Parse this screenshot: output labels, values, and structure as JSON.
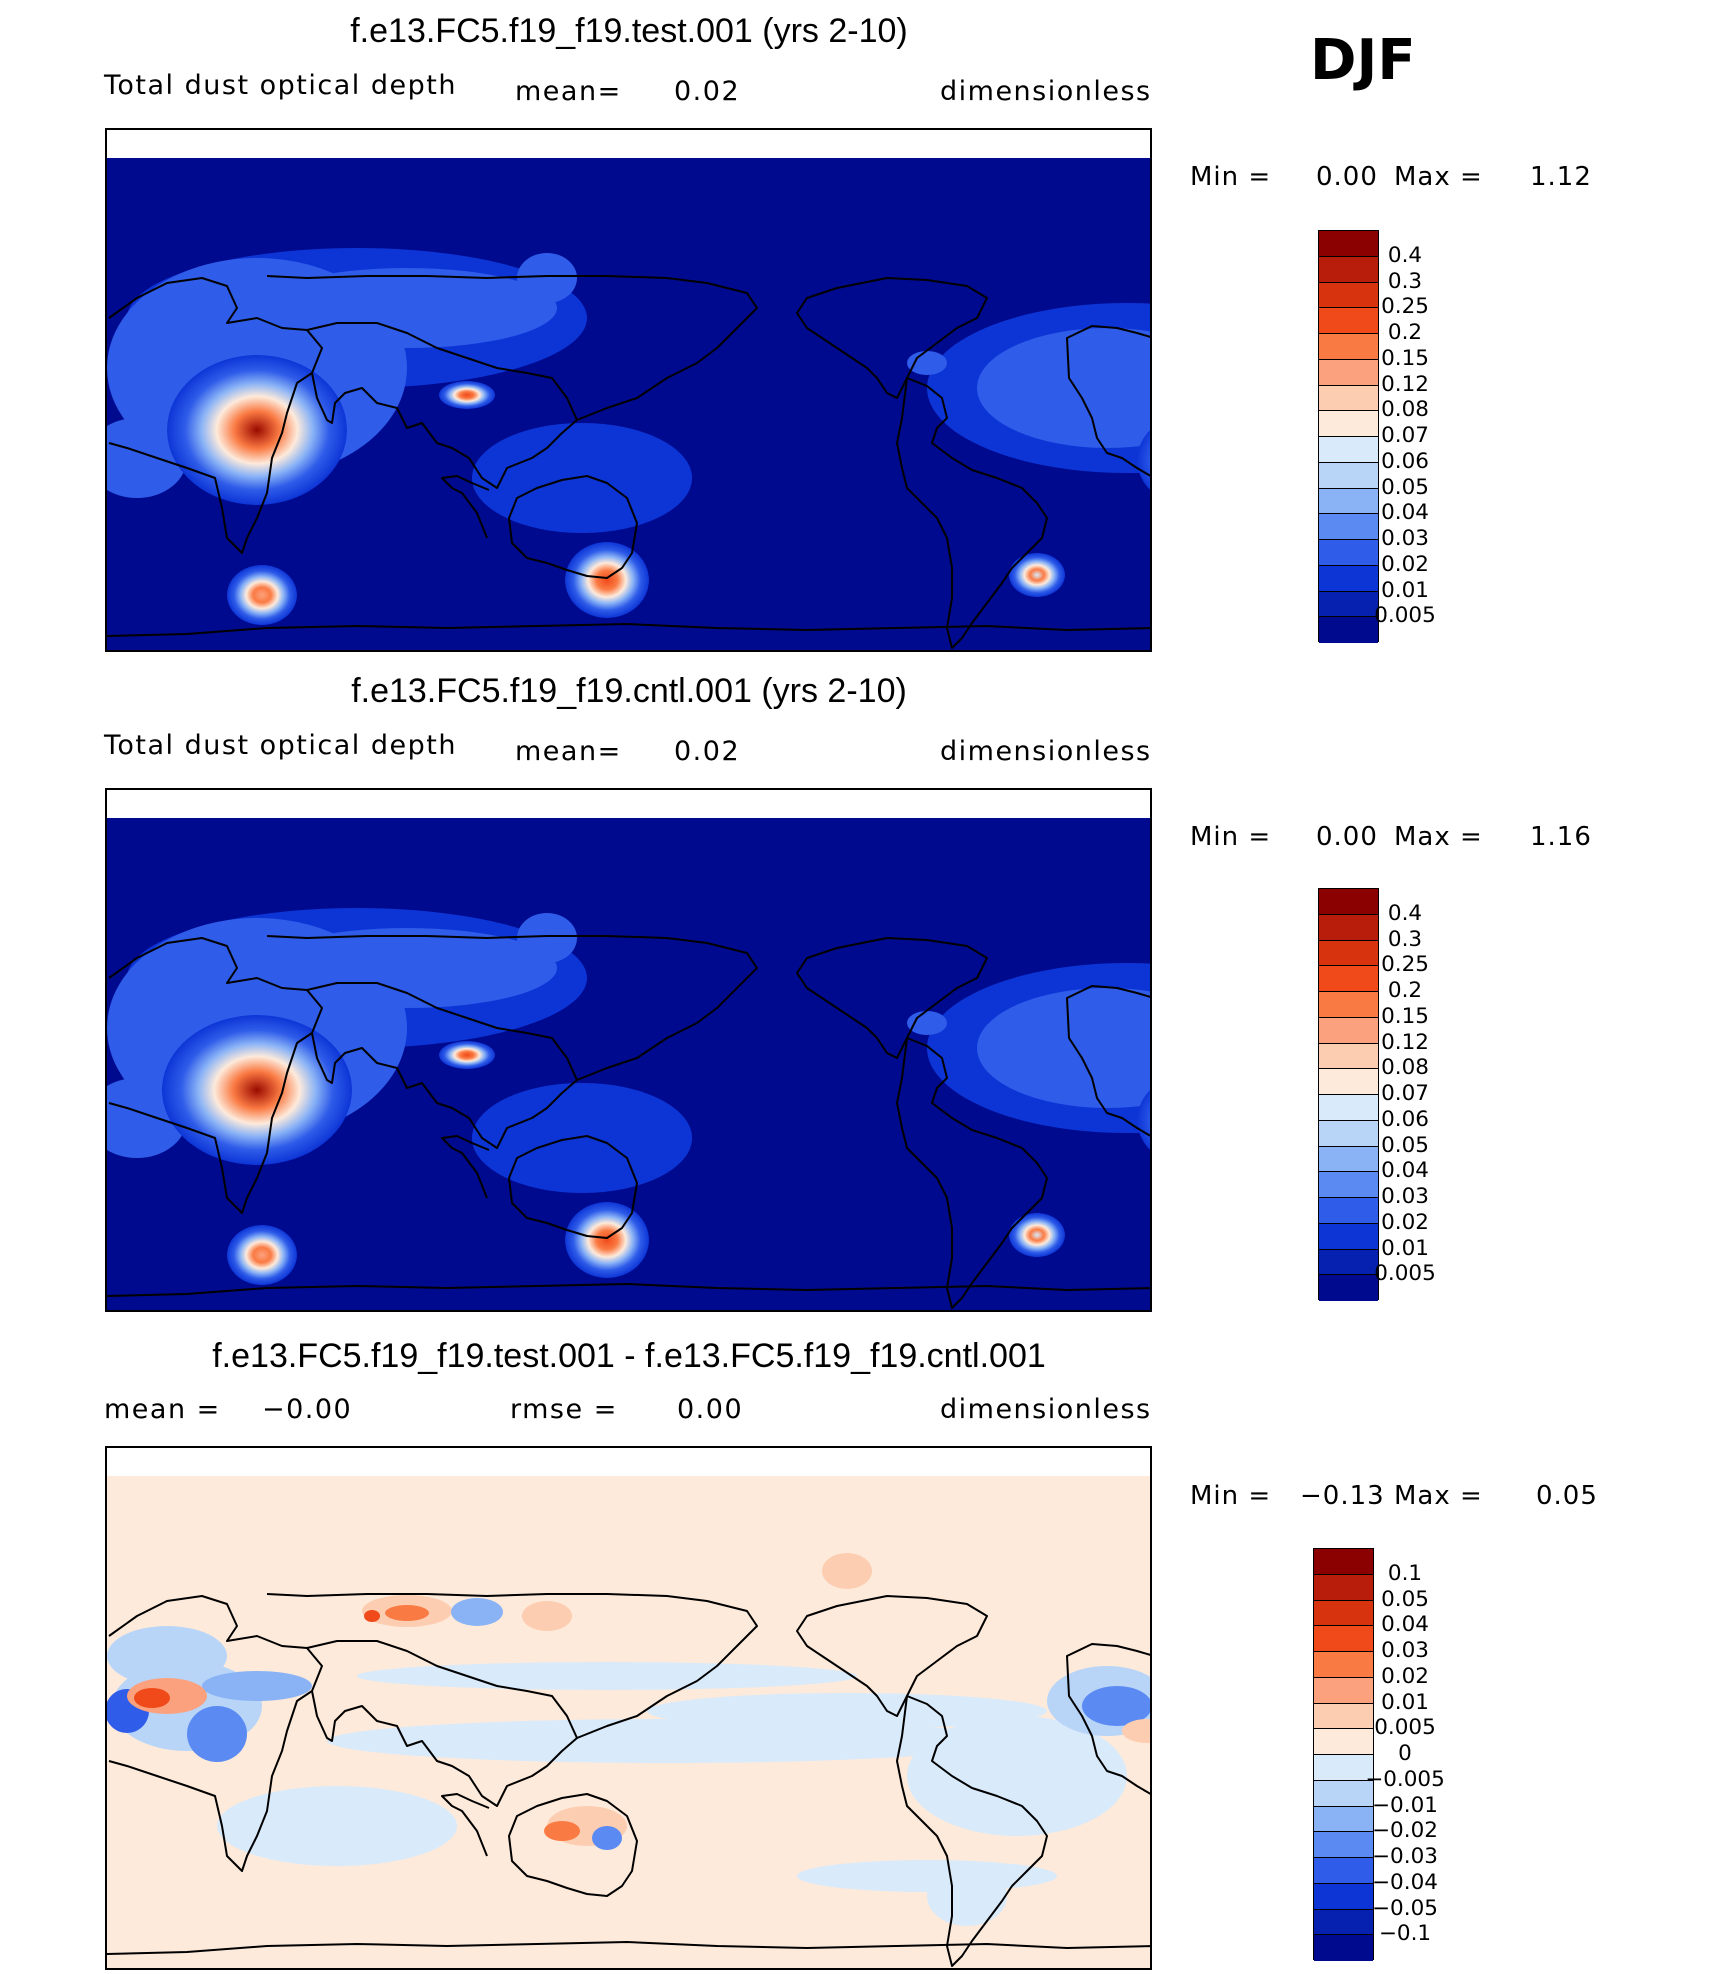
{
  "season": "DJF",
  "panels": [
    {
      "id": "test",
      "title": "f.e13.FC5.f19_f19.test.001 (yrs 2-10)",
      "variable": "Total dust optical depth",
      "stat1_label": "mean=",
      "stat1_value": "0.02",
      "units": "dimensionless",
      "min_label": "Min =",
      "min_value": "0.00",
      "max_label": "Max =",
      "max_value": "1.12",
      "background_color": "#000a8f",
      "colorbar": {
        "labels": [
          "0.4",
          "0.3",
          "0.25",
          "0.2",
          "0.15",
          "0.12",
          "0.08",
          "0.07",
          "0.06",
          "0.05",
          "0.04",
          "0.03",
          "0.02",
          "0.01",
          "0.005"
        ],
        "colors": [
          "#8b0000",
          "#b81c0a",
          "#d8330f",
          "#f04a1a",
          "#fa7a43",
          "#fca17e",
          "#fdcdb1",
          "#fdeadb",
          "#d9eafa",
          "#b8d5f8",
          "#8ab3f6",
          "#5a8af2",
          "#2f5ce9",
          "#0d35d6",
          "#0621b0",
          "#000a8f"
        ]
      },
      "hotspots": [
        {
          "cx": 150,
          "cy": 300,
          "rx": 90,
          "ry": 75,
          "peak": "#9a0a00"
        },
        {
          "cx": 500,
          "cy": 450,
          "rx": 42,
          "ry": 38,
          "peak": "#f04a1a"
        },
        {
          "cx": 1110,
          "cy": 330,
          "rx": 80,
          "ry": 55,
          "peak": "#d8330f"
        },
        {
          "cx": 360,
          "cy": 265,
          "rx": 28,
          "ry": 14,
          "peak": "#f04a1a"
        },
        {
          "cx": 930,
          "cy": 445,
          "rx": 28,
          "ry": 22,
          "peak": "#d9eafa"
        },
        {
          "cx": 155,
          "cy": 465,
          "rx": 35,
          "ry": 30,
          "peak": "#fca17e"
        }
      ]
    },
    {
      "id": "cntl",
      "title": "f.e13.FC5.f19_f19.cntl.001 (yrs 2-10)",
      "variable": "Total dust optical depth",
      "stat1_label": "mean=",
      "stat1_value": "0.02",
      "units": "dimensionless",
      "min_label": "Min =",
      "min_value": "0.00",
      "max_label": "Max =",
      "max_value": "1.16",
      "background_color": "#000a8f",
      "colorbar": {
        "labels": [
          "0.4",
          "0.3",
          "0.25",
          "0.2",
          "0.15",
          "0.12",
          "0.08",
          "0.07",
          "0.06",
          "0.05",
          "0.04",
          "0.03",
          "0.02",
          "0.01",
          "0.005"
        ],
        "colors": [
          "#8b0000",
          "#b81c0a",
          "#d8330f",
          "#f04a1a",
          "#fa7a43",
          "#fca17e",
          "#fdcdb1",
          "#fdeadb",
          "#d9eafa",
          "#b8d5f8",
          "#8ab3f6",
          "#5a8af2",
          "#2f5ce9",
          "#0d35d6",
          "#0621b0",
          "#000a8f"
        ]
      },
      "hotspots": [
        {
          "cx": 150,
          "cy": 300,
          "rx": 95,
          "ry": 75,
          "peak": "#9a0a00"
        },
        {
          "cx": 500,
          "cy": 450,
          "rx": 42,
          "ry": 38,
          "peak": "#f04a1a"
        },
        {
          "cx": 1110,
          "cy": 330,
          "rx": 80,
          "ry": 55,
          "peak": "#d8330f"
        },
        {
          "cx": 360,
          "cy": 265,
          "rx": 28,
          "ry": 14,
          "peak": "#f04a1a"
        },
        {
          "cx": 930,
          "cy": 445,
          "rx": 28,
          "ry": 22,
          "peak": "#d9eafa"
        },
        {
          "cx": 155,
          "cy": 465,
          "rx": 35,
          "ry": 30,
          "peak": "#fca17e"
        }
      ]
    },
    {
      "id": "diff",
      "title": "f.e13.FC5.f19_f19.test.001 - f.e13.FC5.f19_f19.cntl.001",
      "stat1_label": "mean =",
      "stat1_value": "−0.00",
      "stat2_label": "rmse =",
      "stat2_value": "0.00",
      "units": "dimensionless",
      "min_label": "Min =",
      "min_value": "−0.13",
      "max_label": "Max =",
      "max_value": "0.05",
      "background_color": "#fdeadb",
      "colorbar": {
        "labels": [
          "0.1",
          "0.05",
          "0.04",
          "0.03",
          "0.02",
          "0.01",
          "0.005",
          "0",
          "−0.005",
          "−0.01",
          "−0.02",
          "−0.03",
          "−0.04",
          "−0.05",
          "−0.1"
        ],
        "colors": [
          "#8b0000",
          "#b81c0a",
          "#d8330f",
          "#f04a1a",
          "#fa7a43",
          "#fca17e",
          "#fdcdb1",
          "#fdeadb",
          "#d9eafa",
          "#b8d5f8",
          "#8ab3f6",
          "#5a8af2",
          "#2f5ce9",
          "#0d35d6",
          "#0621b0",
          "#000a8f"
        ]
      },
      "hotspots": []
    }
  ]
}
